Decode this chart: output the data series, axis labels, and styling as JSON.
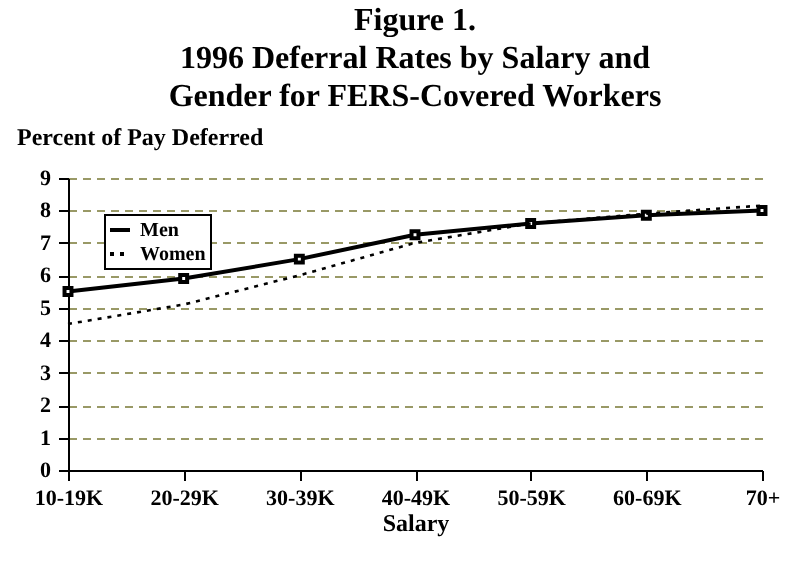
{
  "chart_data": {
    "type": "line",
    "title": [
      "Figure 1.",
      "1996 Deferral Rates by Salary and",
      "Gender for FERS-Covered Workers"
    ],
    "xlabel": "Salary",
    "ylabel": "Percent of Pay Deferred",
    "categories": [
      "10-19K",
      "20-29K",
      "30-39K",
      "40-49K",
      "50-59K",
      "60-69K",
      "70+"
    ],
    "series": [
      {
        "name": "Men",
        "color": "#000000",
        "line_style": "solid",
        "marker": "square",
        "values": [
          5.5,
          5.9,
          6.5,
          7.25,
          7.6,
          7.85,
          8.0
        ]
      },
      {
        "name": "Women",
        "color": "#000000",
        "line_style": "dotted",
        "marker": "none",
        "values": [
          4.5,
          5.1,
          6.0,
          7.0,
          7.6,
          7.9,
          8.15
        ]
      }
    ],
    "ylim": [
      0,
      9
    ],
    "yticks": [
      0,
      1,
      2,
      3,
      4,
      5,
      6,
      7,
      8,
      9
    ],
    "grid": "y",
    "legend": "top left"
  }
}
